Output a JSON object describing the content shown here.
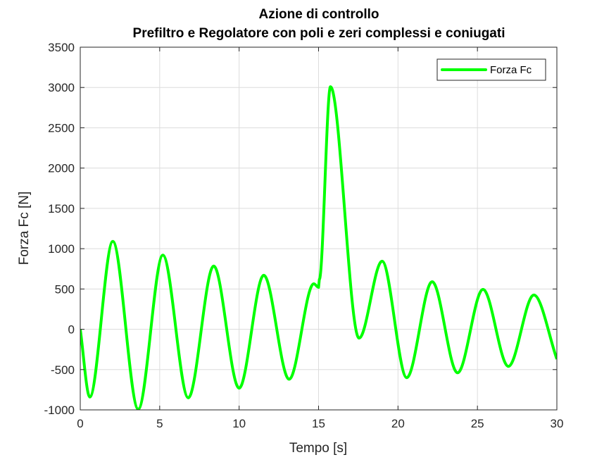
{
  "chart_data": {
    "type": "line",
    "title": "Azione di controllo",
    "subtitle": "Prefiltro e Regolatore con poli e zeri complessi e coniugati",
    "xlabel": "Tempo [s]",
    "ylabel": "Forza Fc [N]",
    "xlim": [
      0,
      30
    ],
    "ylim": [
      -1000,
      3500
    ],
    "xticks": [
      0,
      5,
      10,
      15,
      20,
      25,
      30
    ],
    "yticks": [
      -1000,
      -500,
      0,
      500,
      1000,
      1500,
      2000,
      2500,
      3000,
      3500
    ],
    "grid": true,
    "legend_position": "top-right",
    "series": [
      {
        "name": "Forza Fc",
        "color": "#00ff00",
        "x": [
          0,
          0.6,
          2.05,
          3.65,
          5.2,
          6.8,
          8.4,
          10.0,
          11.55,
          13.15,
          14.7,
          15.0,
          15.05,
          15.75,
          17.55,
          19.0,
          20.55,
          22.15,
          23.75,
          25.35,
          26.95,
          28.55,
          30.0
        ],
        "y": [
          0,
          -840,
          1090,
          -990,
          920,
          -850,
          785,
          -730,
          670,
          -620,
          565,
          520,
          620,
          3010,
          -110,
          845,
          -600,
          590,
          -540,
          495,
          -460,
          425,
          -370
        ]
      }
    ]
  }
}
